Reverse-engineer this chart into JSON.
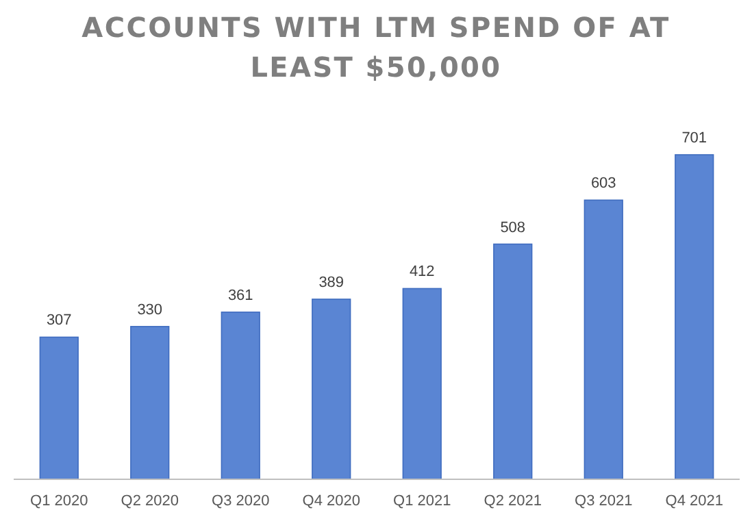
{
  "chart_data": {
    "type": "bar",
    "title": "ACCOUNTS WITH LTM SPEND OF AT LEAST $50,000",
    "categories": [
      "Q1 2020",
      "Q2 2020",
      "Q3 2020",
      "Q4 2020",
      "Q1 2021",
      "Q2 2021",
      "Q3 2021",
      "Q4 2021"
    ],
    "values": [
      307,
      330,
      361,
      389,
      412,
      508,
      603,
      701
    ],
    "color": "#5a85d3",
    "data_labels": true
  }
}
